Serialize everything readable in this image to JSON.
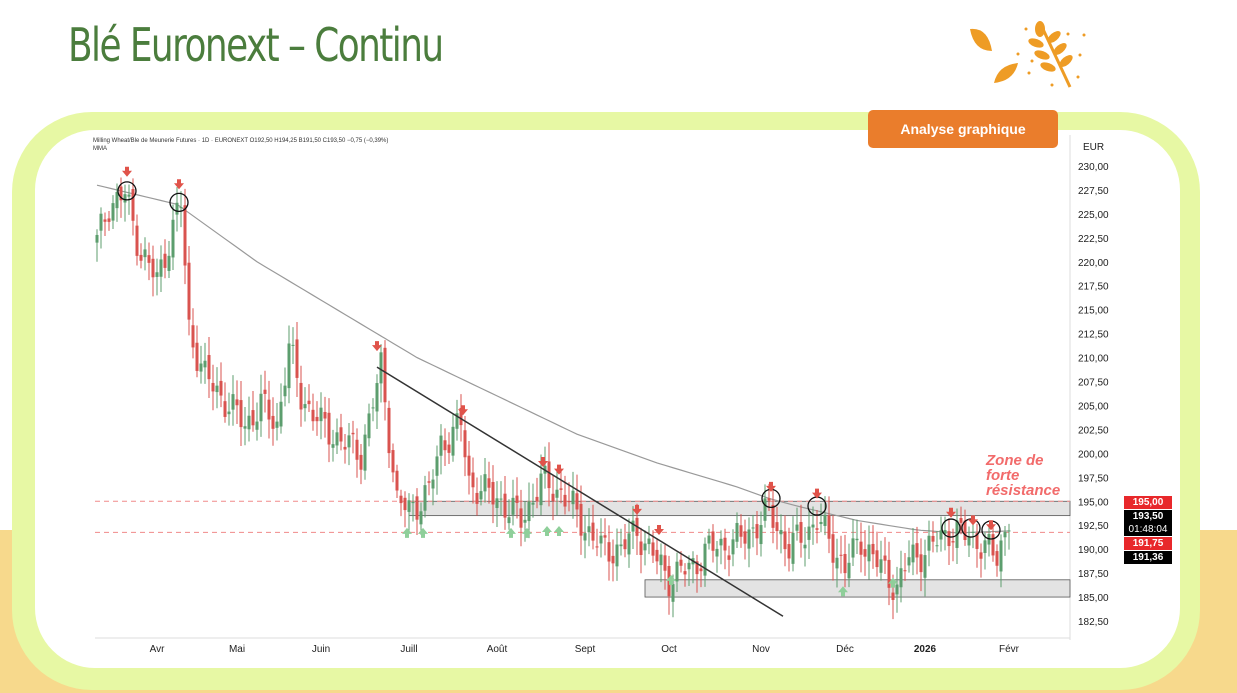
{
  "title": "Blé Euronext – Continu",
  "button_label": "Analyse graphique",
  "chart_header": {
    "symbol_line": "Milling Wheat/Ble de Meunerie Futures · 1D · EURONEXT  O192,50  H194,25  B191,50  C193,50  −0,75 (−0,39%)",
    "indicator": "MMA"
  },
  "annotation": "Zone de forte résistance",
  "price_labels": {
    "resistance": "195,00",
    "last": "193,50",
    "countdown": "01:48:04",
    "support": "191,75",
    "sma": "191,36"
  },
  "colors": {
    "up": "#5c9e6e",
    "down": "#d9534f",
    "arrow_down": "#e0534a",
    "arrow_up": "#8fcf9a",
    "title": "#4b7d3d",
    "button": "#ea7d2c"
  },
  "chart_data": {
    "type": "candlestick",
    "currency": "EUR",
    "ylim": [
      181,
      231
    ],
    "yticks": [
      "230,00",
      "227,50",
      "225,00",
      "222,50",
      "220,00",
      "217,50",
      "215,00",
      "212,50",
      "210,00",
      "207,50",
      "205,00",
      "202,50",
      "200,00",
      "197,50",
      "195,00",
      "192,50",
      "190,00",
      "187,50",
      "185,00",
      "182,50"
    ],
    "ytick_values": [
      230,
      227.5,
      225,
      222.5,
      220,
      217.5,
      215,
      212.5,
      210,
      207.5,
      205,
      202.5,
      200,
      197.5,
      195,
      192.5,
      190,
      187.5,
      185,
      182.5
    ],
    "days": 245,
    "months": [
      {
        "label": "Avr",
        "day": 15
      },
      {
        "label": "Mai",
        "day": 35
      },
      {
        "label": "Juin",
        "day": 56
      },
      {
        "label": "Juill",
        "day": 78
      },
      {
        "label": "Août",
        "day": 100
      },
      {
        "label": "Sept",
        "day": 122
      },
      {
        "label": "Oct",
        "day": 143
      },
      {
        "label": "Nov",
        "day": 166
      },
      {
        "label": "Déc",
        "day": 187
      },
      {
        "label": "2026",
        "day": 207
      },
      {
        "label": "Févr",
        "day": 228
      }
    ],
    "close_path": [
      [
        0,
        222
      ],
      [
        3,
        226
      ],
      [
        7,
        227
      ],
      [
        11,
        221
      ],
      [
        15,
        218
      ],
      [
        20,
        225
      ],
      [
        21,
        226
      ],
      [
        23,
        213
      ],
      [
        27,
        208
      ],
      [
        31,
        206
      ],
      [
        37,
        203
      ],
      [
        41,
        205
      ],
      [
        45,
        203
      ],
      [
        48,
        211
      ],
      [
        51,
        206
      ],
      [
        56,
        203
      ],
      [
        62,
        201
      ],
      [
        66,
        200
      ],
      [
        70,
        207
      ],
      [
        71,
        209
      ],
      [
        75,
        195
      ],
      [
        78,
        194
      ],
      [
        83,
        196
      ],
      [
        86,
        201
      ],
      [
        91,
        203
      ],
      [
        93,
        197
      ],
      [
        101,
        195
      ],
      [
        106,
        193
      ],
      [
        111,
        197
      ],
      [
        116,
        196
      ],
      [
        121,
        193
      ],
      [
        126,
        190
      ],
      [
        131,
        190
      ],
      [
        135,
        192
      ],
      [
        138,
        190
      ],
      [
        143,
        187
      ],
      [
        148,
        188
      ],
      [
        153,
        190
      ],
      [
        161,
        191
      ],
      [
        166,
        193
      ],
      [
        168,
        194
      ],
      [
        173,
        190
      ],
      [
        180,
        193
      ],
      [
        183,
        191
      ],
      [
        187,
        188
      ],
      [
        191,
        191
      ],
      [
        196,
        188
      ],
      [
        200,
        186
      ],
      [
        203,
        189
      ],
      [
        208,
        190
      ],
      [
        213,
        192
      ],
      [
        220,
        191
      ],
      [
        225,
        189
      ],
      [
        228,
        193.5
      ]
    ],
    "sma_path": [
      [
        0,
        228
      ],
      [
        20,
        226
      ],
      [
        40,
        220
      ],
      [
        60,
        215
      ],
      [
        80,
        210
      ],
      [
        100,
        206
      ],
      [
        120,
        202
      ],
      [
        140,
        199
      ],
      [
        160,
        196.5
      ],
      [
        168,
        195.3
      ],
      [
        175,
        194.5
      ],
      [
        190,
        193
      ],
      [
        205,
        192
      ],
      [
        215,
        191.7
      ],
      [
        228,
        191.9
      ]
    ],
    "trendline": [
      [
        70,
        209
      ],
      [
        171.5,
        183
      ]
    ],
    "resistance_zone": {
      "from_day": 78,
      "low": 193.5,
      "high": 195
    },
    "support_zone": {
      "from_day": 137,
      "low": 185,
      "high": 186.8
    },
    "dashed_levels": [
      195,
      191.75
    ],
    "down_arrows": [
      [
        7.5,
        229.4
      ],
      [
        20.5,
        228.1
      ],
      [
        70,
        211.2
      ],
      [
        91.5,
        204.5
      ],
      [
        111.5,
        199.1
      ],
      [
        115.5,
        198.3
      ],
      [
        135,
        194.1
      ],
      [
        140.5,
        192
      ],
      [
        168.5,
        196.5
      ],
      [
        180,
        195.8
      ],
      [
        213.5,
        193.8
      ],
      [
        219,
        193
      ],
      [
        223.5,
        192.5
      ]
    ],
    "up_arrows": [
      [
        77.5,
        191.7
      ],
      [
        81.5,
        191.7
      ],
      [
        103.5,
        191.7
      ],
      [
        107.5,
        191.7
      ],
      [
        112.5,
        191.9
      ],
      [
        115.5,
        191.9
      ],
      [
        143.5,
        186.8
      ],
      [
        186.5,
        185.6
      ],
      [
        199,
        186.5
      ]
    ],
    "circles": [
      [
        7.5,
        227.4
      ],
      [
        20.5,
        226.2
      ],
      [
        168.5,
        195.3
      ],
      [
        180,
        194.5
      ],
      [
        213.5,
        192.2
      ],
      [
        218.5,
        192.2
      ],
      [
        223.5,
        192
      ]
    ]
  }
}
